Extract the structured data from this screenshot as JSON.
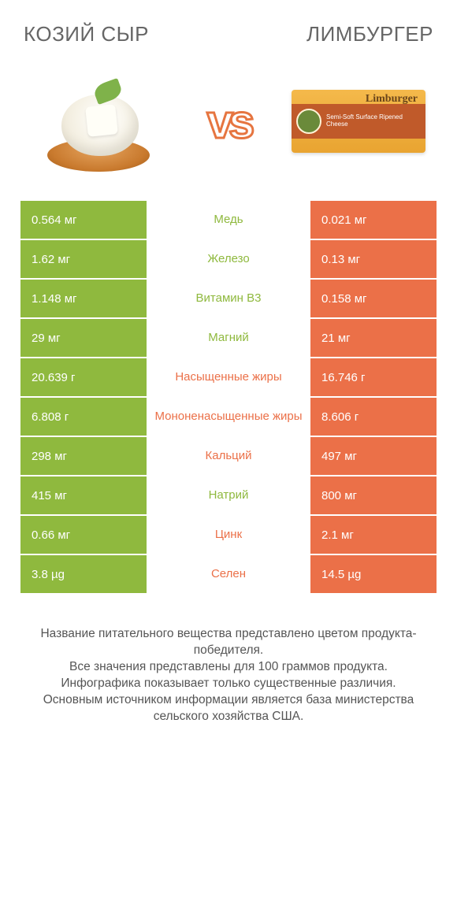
{
  "colors": {
    "green": "#8fb93e",
    "orange": "#eb7048",
    "mid_green_text": "#8fb93e",
    "mid_orange_text": "#eb7048",
    "header_text": "#666666",
    "footer_text": "#555555",
    "white": "#ffffff"
  },
  "header": {
    "left": "КОЗИЙ СЫР",
    "right": "ЛИМБУРГЕР"
  },
  "vs": "vs",
  "limburger_box": {
    "brand": "Limburger",
    "medal": "rialali",
    "sub": "Semi-Soft Surface Ripened Cheese"
  },
  "rows": [
    {
      "left": "0.564 мг",
      "mid": "Медь",
      "right": "0.021 мг",
      "winner": "left"
    },
    {
      "left": "1.62 мг",
      "mid": "Железо",
      "right": "0.13 мг",
      "winner": "left"
    },
    {
      "left": "1.148 мг",
      "mid": "Витамин B3",
      "right": "0.158 мг",
      "winner": "left"
    },
    {
      "left": "29 мг",
      "mid": "Магний",
      "right": "21 мг",
      "winner": "left"
    },
    {
      "left": "20.639 г",
      "mid": "Насыщенные жиры",
      "right": "16.746 г",
      "winner": "right"
    },
    {
      "left": "6.808 г",
      "mid": "Мононенасыщенные жиры",
      "right": "8.606 г",
      "winner": "right"
    },
    {
      "left": "298 мг",
      "mid": "Кальций",
      "right": "497 мг",
      "winner": "right"
    },
    {
      "left": "415 мг",
      "mid": "Натрий",
      "right": "800 мг",
      "winner": "left"
    },
    {
      "left": "0.66 мг",
      "mid": "Цинк",
      "right": "2.1 мг",
      "winner": "right"
    },
    {
      "left": "3.8 µg",
      "mid": "Селен",
      "right": "14.5 µg",
      "winner": "right"
    }
  ],
  "footer": "Название питательного вещества представлено цветом продукта-победителя.\nВсе значения представлены для 100 граммов продукта.\nИнфографика показывает только существенные различия.\nОсновным источником информации является база министерства сельского хозяйства США."
}
